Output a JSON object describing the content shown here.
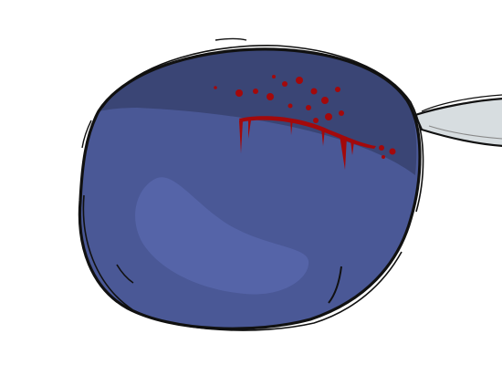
{
  "scene": {
    "subject": "plum-icon",
    "palette": {
      "background": "#ffffff",
      "body": "#4a5896",
      "shade": "#3a4575",
      "highlight": "#5564a8",
      "outline": "#111111",
      "blood": "#a3090b",
      "blade": "#d7dde0"
    }
  }
}
